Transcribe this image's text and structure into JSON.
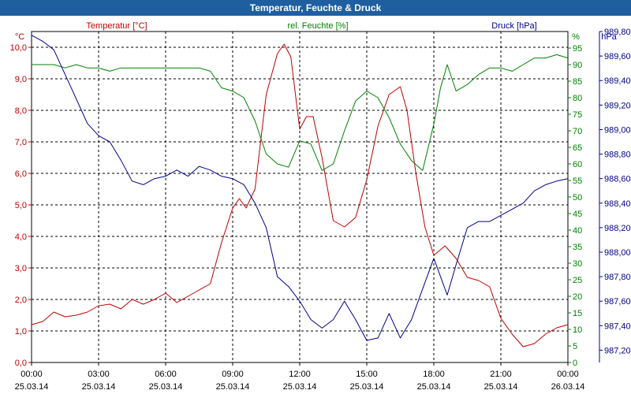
{
  "chart_data": {
    "type": "line",
    "title": "Temperatur, Feuchte & Druck",
    "x_ticks": [
      {
        "time": "00:00",
        "date": "25.03.14"
      },
      {
        "time": "03:00",
        "date": "25.03.14"
      },
      {
        "time": "06:00",
        "date": "25.03.14"
      },
      {
        "time": "09:00",
        "date": "25.03.14"
      },
      {
        "time": "12:00",
        "date": "25.03.14"
      },
      {
        "time": "15:00",
        "date": "25.03.14"
      },
      {
        "time": "18:00",
        "date": "25.03.14"
      },
      {
        "time": "21:00",
        "date": "25.03.14"
      },
      {
        "time": "00:00",
        "date": "26.03.14"
      }
    ],
    "x_range_hours": [
      0,
      24
    ],
    "axes": {
      "temperature": {
        "label": "Temperatur [°C]",
        "unit": "°C",
        "min": 0,
        "max": 10.5,
        "ticks": [
          "0,0",
          "1,0",
          "2,0",
          "3,0",
          "4,0",
          "5,0",
          "6,0",
          "7,0",
          "8,0",
          "9,0",
          "10,0"
        ]
      },
      "humidity": {
        "label": "rel. Feuchte [%]",
        "unit": "%",
        "min": 0,
        "max": 100,
        "ticks": [
          "0",
          "5",
          "10",
          "15",
          "20",
          "25",
          "30",
          "35",
          "40",
          "45",
          "50",
          "55",
          "60",
          "65",
          "70",
          "75",
          "80",
          "85",
          "90",
          "95"
        ]
      },
      "pressure": {
        "label": "Druck [hPa]",
        "unit": "hPa",
        "min": 987.1,
        "max": 989.8,
        "ticks": [
          "987,20",
          "987,40",
          "987,60",
          "987,80",
          "988,00",
          "988,20",
          "988,40",
          "988,60",
          "988,80",
          "989,00",
          "989,20",
          "989,40",
          "989,60",
          "989,80"
        ]
      }
    },
    "series": [
      {
        "name": "Temperatur",
        "axis": "temperature",
        "color": "#c00000",
        "x": [
          0,
          0.5,
          1,
          1.5,
          2,
          2.5,
          3,
          3.5,
          4,
          4.5,
          5,
          5.5,
          6,
          6.5,
          7,
          7.5,
          8,
          8.5,
          9,
          9.3,
          9.6,
          10,
          10.5,
          11,
          11.3,
          11.6,
          12,
          12.3,
          12.6,
          13,
          13.5,
          14,
          14.5,
          15,
          15.5,
          16,
          16.5,
          16.8,
          17.2,
          17.6,
          18,
          18.5,
          19,
          19.5,
          20,
          20.5,
          21,
          21.5,
          22,
          22.5,
          23,
          23.5,
          24
        ],
        "values": [
          1.2,
          1.3,
          1.6,
          1.45,
          1.5,
          1.6,
          1.8,
          1.85,
          1.7,
          2.0,
          1.85,
          2.0,
          2.2,
          1.9,
          2.1,
          2.3,
          2.5,
          3.8,
          4.9,
          5.2,
          4.9,
          5.5,
          8.5,
          9.8,
          10.1,
          9.7,
          7.4,
          7.8,
          7.8,
          6.5,
          4.5,
          4.3,
          4.6,
          5.8,
          7.5,
          8.5,
          8.75,
          8.0,
          6.0,
          4.3,
          3.4,
          3.7,
          3.3,
          2.7,
          2.6,
          2.4,
          1.4,
          0.9,
          0.5,
          0.6,
          0.9,
          1.1,
          1.2
        ]
      },
      {
        "name": "rel. Feuchte",
        "axis": "humidity",
        "color": "#008000",
        "x": [
          0,
          0.5,
          1,
          1.5,
          2,
          2.5,
          3,
          3.5,
          4,
          4.5,
          5,
          5.5,
          6,
          6.5,
          7,
          7.5,
          8,
          8.5,
          9,
          9.5,
          10,
          10.5,
          11,
          11.5,
          12,
          12.5,
          13,
          13.5,
          14,
          14.5,
          15,
          15.5,
          16,
          16.5,
          17,
          17.5,
          18,
          18.3,
          18.6,
          19,
          19.5,
          20,
          20.5,
          21,
          21.5,
          22,
          22.5,
          23,
          23.5,
          24
        ],
        "values": [
          90,
          90,
          90,
          89,
          90,
          89,
          89,
          88,
          89,
          89,
          89,
          89,
          89,
          89,
          89,
          89,
          88,
          83,
          82,
          80,
          73,
          63,
          60,
          59,
          67,
          66,
          58,
          60,
          70,
          79,
          82,
          80,
          74,
          66,
          61,
          58,
          72,
          83,
          90,
          82,
          84,
          87,
          89,
          89,
          88,
          90,
          92,
          92,
          93,
          92
        ]
      },
      {
        "name": "Druck",
        "axis": "pressure",
        "color": "#00008b",
        "x": [
          0,
          0.5,
          1,
          1.5,
          2,
          2.5,
          3,
          3.5,
          4,
          4.5,
          5,
          5.5,
          6,
          6.5,
          7,
          7.5,
          8,
          8.5,
          9,
          9.5,
          10,
          10.5,
          11,
          11.5,
          12,
          12.5,
          13,
          13.5,
          14,
          14.5,
          15,
          15.5,
          16,
          16.5,
          17,
          17.5,
          18,
          18.3,
          18.6,
          19,
          19.5,
          20,
          20.5,
          21,
          21.5,
          22,
          22.5,
          23,
          23.5,
          24
        ],
        "values": [
          989.77,
          989.72,
          989.65,
          989.45,
          989.25,
          989.05,
          988.95,
          988.9,
          988.75,
          988.58,
          988.55,
          988.6,
          988.62,
          988.67,
          988.62,
          988.7,
          988.67,
          988.62,
          988.6,
          988.55,
          988.4,
          988.2,
          987.8,
          987.72,
          987.6,
          987.45,
          987.38,
          987.45,
          987.6,
          987.45,
          987.28,
          987.3,
          987.5,
          987.3,
          987.45,
          987.7,
          987.95,
          987.8,
          987.65,
          987.9,
          988.2,
          988.25,
          988.25,
          988.3,
          988.35,
          988.4,
          988.5,
          988.55,
          988.58,
          988.6
        ]
      }
    ]
  }
}
